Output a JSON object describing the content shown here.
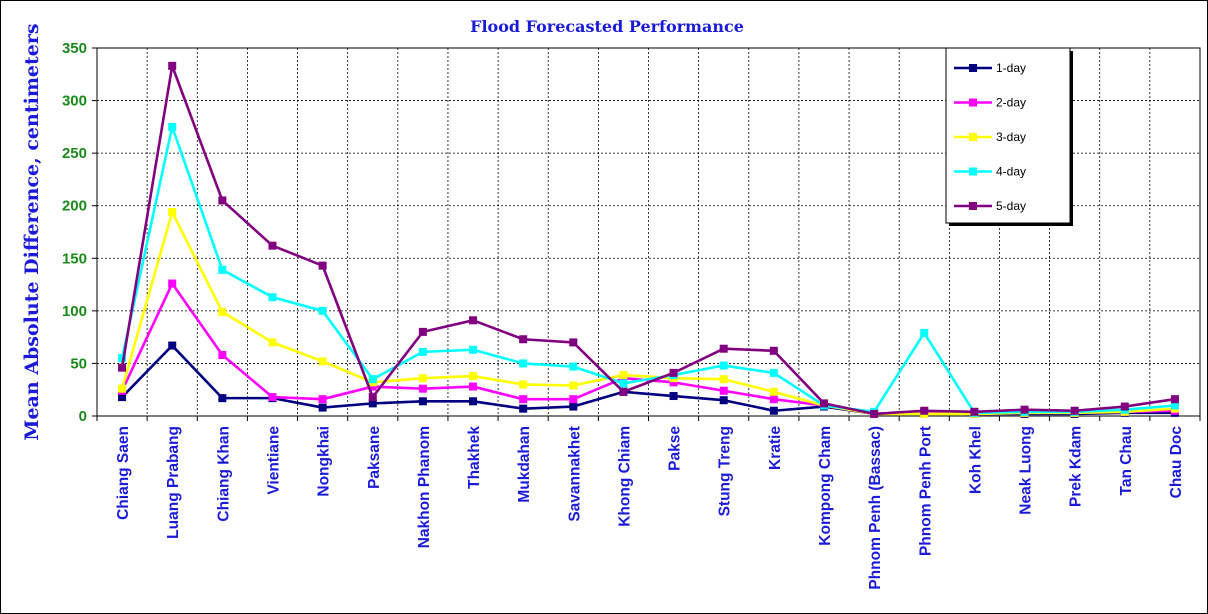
{
  "colors": {
    "axis_text": "#1a1ad8",
    "tick_text": "#1a1ad8",
    "ytick_text": "#1a8a1a",
    "grid": "#000000"
  },
  "chart_data": {
    "type": "line",
    "title": "Flood Forecasted Performance",
    "xlabel": "",
    "ylabel": "Mean Absolute Difference, centimeters",
    "ylim": [
      0,
      350
    ],
    "yticks": [
      0,
      50,
      100,
      150,
      200,
      250,
      300,
      350
    ],
    "grid": true,
    "legend_position": "top-right",
    "categories": [
      "Chiang Saen",
      "Luang Prabang",
      "Chiang Khan",
      "Vientiane",
      "Nongkhai",
      "Paksane",
      "Nakhon Phanom",
      "Thakhek",
      "Mukdahan",
      "Savannakhet",
      "Khong Chiam",
      "Pakse",
      "Stung Treng",
      "Kratie",
      "Kompong Cham",
      "Phnom Penh (Bassac)",
      "Phnom Penh Port",
      "Koh Khel",
      "Neak Luong",
      "Prek Kdam",
      "Tan Chau",
      "Chau Doc"
    ],
    "series": [
      {
        "name": "1-day",
        "color": "#000080",
        "values": [
          18,
          67,
          17,
          17,
          8,
          12,
          14,
          14,
          7,
          9,
          23,
          19,
          15,
          5,
          9,
          2,
          3,
          2,
          2,
          2,
          3,
          3
        ]
      },
      {
        "name": "2-day",
        "color": "#ff00ff",
        "values": [
          24,
          126,
          58,
          18,
          16,
          28,
          26,
          28,
          16,
          16,
          36,
          32,
          24,
          16,
          10,
          2,
          4,
          2,
          3,
          3,
          4,
          5
        ]
      },
      {
        "name": "3-day",
        "color": "#ffff00",
        "values": [
          26,
          194,
          99,
          70,
          52,
          32,
          36,
          38,
          30,
          29,
          39,
          36,
          35,
          23,
          10,
          2,
          2,
          2,
          3,
          3,
          4,
          7
        ]
      },
      {
        "name": "4-day",
        "color": "#00ffff",
        "values": [
          55,
          275,
          139,
          113,
          100,
          35,
          61,
          63,
          50,
          47,
          31,
          39,
          48,
          41,
          10,
          4,
          79,
          3,
          4,
          4,
          6,
          10
        ]
      },
      {
        "name": "5-day",
        "color": "#800080",
        "values": [
          46,
          333,
          205,
          162,
          143,
          18,
          80,
          91,
          73,
          70,
          23,
          41,
          64,
          62,
          12,
          2,
          5,
          4,
          6,
          5,
          9,
          16
        ]
      }
    ]
  }
}
